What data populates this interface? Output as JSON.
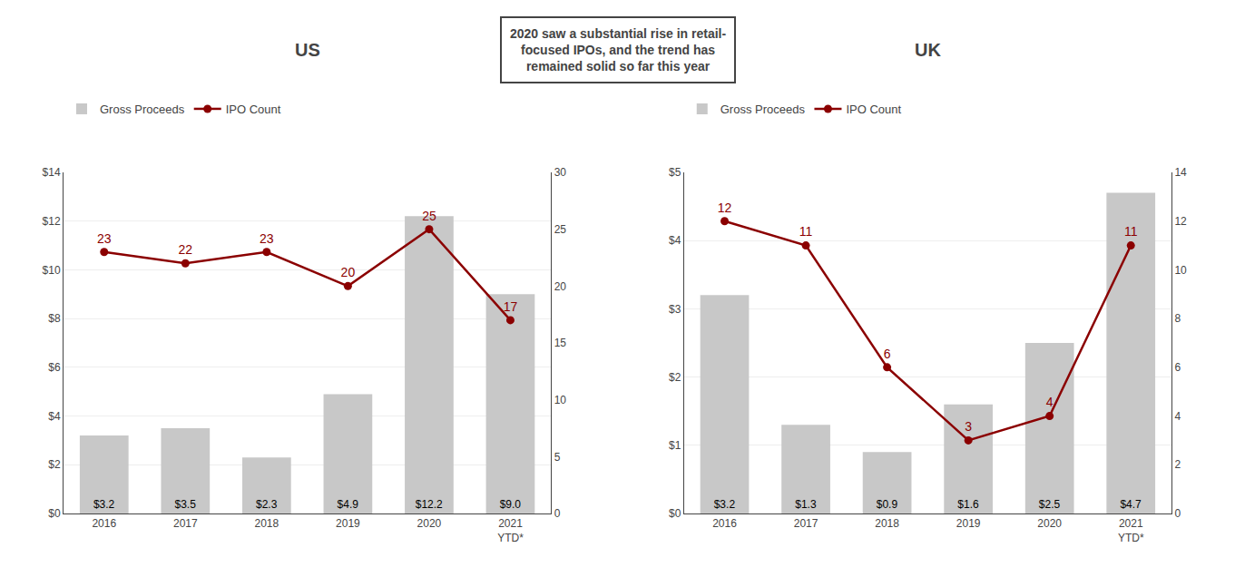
{
  "chart_data": [
    {
      "type": "bar",
      "title": "US",
      "categories": [
        "2016",
        "2017",
        "2018",
        "2019",
        "2020",
        "2021\nYTD*"
      ],
      "series": [
        {
          "name": "Gross Proceeds",
          "type": "bar",
          "color": "#c8c8c8",
          "values": [
            3.2,
            3.5,
            2.3,
            4.9,
            12.2,
            9.0
          ],
          "value_labels": [
            "$3.2",
            "$3.5",
            "$2.3",
            "$4.9",
            "$12.2",
            "$9.0"
          ]
        },
        {
          "name": "IPO Count",
          "type": "line",
          "color": "#8B0000",
          "marker": "circle",
          "axis": "y2",
          "values": [
            23,
            22,
            23,
            20,
            25,
            17
          ]
        }
      ],
      "ylim": [
        0,
        14
      ],
      "yticks": [
        {
          "value": 0,
          "label": "$0"
        },
        {
          "value": 2,
          "label": "$2"
        },
        {
          "value": 4,
          "label": "$4"
        },
        {
          "value": 6,
          "label": "$6"
        },
        {
          "value": 8,
          "label": "$8"
        },
        {
          "value": 10,
          "label": "$10"
        },
        {
          "value": 12,
          "label": "$12"
        },
        {
          "value": 14,
          "label": "$14"
        }
      ],
      "y2lim": [
        0,
        30
      ],
      "y2ticks": [
        0,
        5,
        10,
        15,
        20,
        25,
        30
      ],
      "grid": true,
      "legend": "top",
      "data_labels": true
    },
    {
      "type": "bar",
      "title": "UK",
      "categories": [
        "2016",
        "2017",
        "2018",
        "2019",
        "2020",
        "2021\nYTD*"
      ],
      "series": [
        {
          "name": "Gross Proceeds",
          "type": "bar",
          "color": "#c8c8c8",
          "values": [
            3.2,
            1.3,
            0.9,
            1.6,
            2.5,
            4.7
          ],
          "value_labels": [
            "$3.2",
            "$1.3",
            "$0.9",
            "$1.6",
            "$2.5",
            "$4.7"
          ]
        },
        {
          "name": "IPO Count",
          "type": "line",
          "color": "#8B0000",
          "marker": "circle",
          "axis": "y2",
          "values": [
            12,
            11,
            6,
            3,
            4,
            11
          ]
        }
      ],
      "ylim": [
        0,
        5
      ],
      "yticks": [
        {
          "value": 0,
          "label": "$0"
        },
        {
          "value": 1,
          "label": "$1"
        },
        {
          "value": 2,
          "label": "$2"
        },
        {
          "value": 3,
          "label": "$3"
        },
        {
          "value": 4,
          "label": "$4"
        },
        {
          "value": 5,
          "label": "$5"
        }
      ],
      "y2lim": [
        0,
        14
      ],
      "y2ticks": [
        0,
        2,
        4,
        6,
        8,
        10,
        12,
        14
      ],
      "grid": true,
      "legend": "top",
      "data_labels": true
    }
  ],
  "annotations": [
    "2020 saw a substantial rise in retail-\nfocused IPOs, and the trend has\nremained solid so far this year"
  ]
}
